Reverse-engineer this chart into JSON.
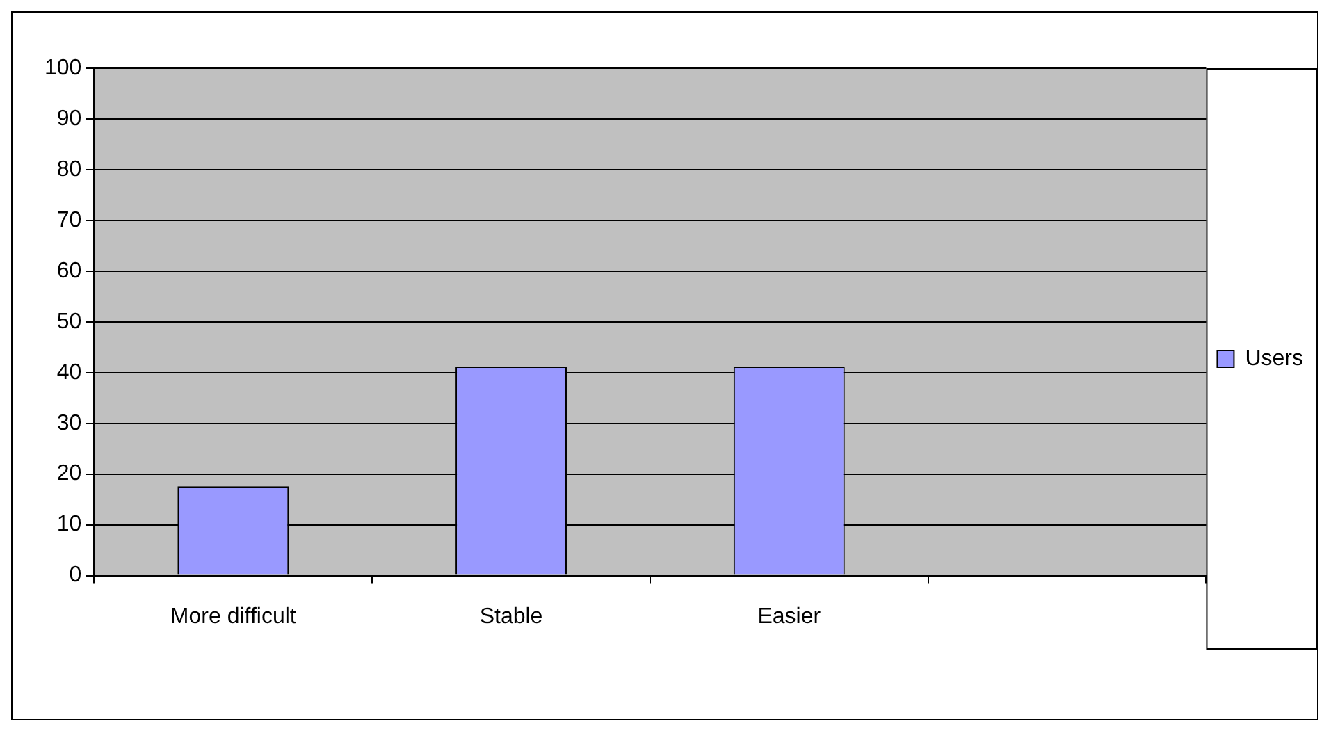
{
  "chart_data": {
    "type": "bar",
    "categories": [
      "More difficult",
      "Stable",
      "Easier",
      null
    ],
    "series": [
      {
        "name": "Users",
        "color": "#9999ff",
        "values": [
          17.6,
          41.2,
          41.2,
          null
        ]
      }
    ],
    "ylim": [
      0,
      100
    ],
    "yticks": [
      0,
      10,
      20,
      30,
      40,
      50,
      60,
      70,
      80,
      90,
      100
    ],
    "grid": "y",
    "legend": "right"
  }
}
